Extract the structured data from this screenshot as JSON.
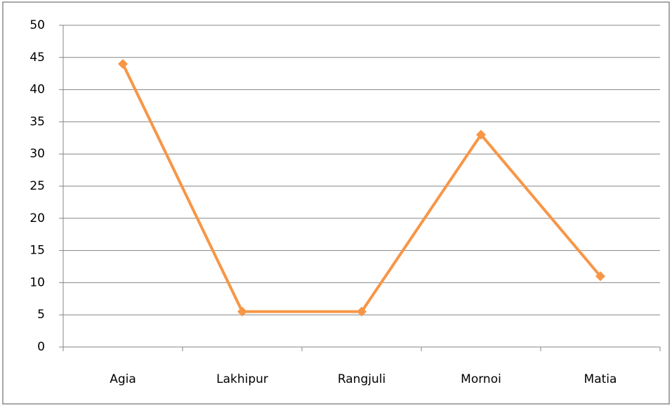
{
  "chart_data": {
    "type": "line",
    "categories": [
      "Agia",
      "Lakhipur",
      "Rangjuli",
      "Mornoi",
      "Matia"
    ],
    "series": [
      {
        "color": "#f79646",
        "values": [
          44,
          5.5,
          5.5,
          33,
          11
        ]
      }
    ],
    "ylim": [
      0,
      50
    ],
    "yticks": [
      0,
      5,
      10,
      15,
      20,
      25,
      30,
      35,
      40,
      45,
      50
    ],
    "grid": true
  }
}
